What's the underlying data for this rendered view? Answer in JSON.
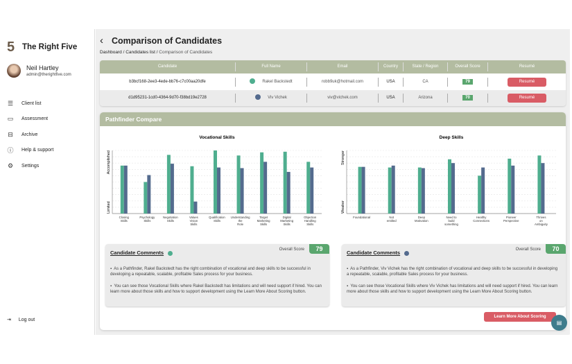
{
  "brand": {
    "name": "The Right Five",
    "logo_glyph": "5"
  },
  "user": {
    "name": "Neil Hartley",
    "email": "admin@therightfive.com"
  },
  "nav": [
    {
      "label": "Client list",
      "icon": "list-icon",
      "glyph": "☰"
    },
    {
      "label": "Assessment",
      "icon": "chat-bubble-icon",
      "glyph": "▭"
    },
    {
      "label": "Archive",
      "icon": "archive-icon",
      "glyph": "⊟"
    },
    {
      "label": "Help & support",
      "icon": "info-circle-icon",
      "glyph": "ⓘ"
    },
    {
      "label": "Settings",
      "icon": "gear-icon",
      "glyph": "⚙"
    }
  ],
  "logout": {
    "label": "Log out",
    "glyph": "⇥"
  },
  "header": {
    "title": "Comparison of Candidates",
    "back_glyph": "‹"
  },
  "breadcrumb": {
    "items": [
      "Dashboard",
      "Candidates list"
    ],
    "current": "Comparison of Candidates",
    "sep": " / "
  },
  "table": {
    "columns": [
      "Candidate",
      "Full Name",
      "Email",
      "Country",
      "State / Region",
      "Overall Score",
      "Resumé"
    ],
    "rows": [
      {
        "id": "b3bcf168-2ee3-4ede-bb76-c7c00aa20dfe",
        "name": "Rakel Backstedt",
        "email": "robb9uk@hotmail.com",
        "country": "USA",
        "state": "CA",
        "score": "79",
        "color": "#4fae8f",
        "resume": "Resumé"
      },
      {
        "id": "d1d95231-1cd0-4364-9d70-f38bd19e2728",
        "name": "Viv Vichek",
        "email": "viv@vichek.com",
        "country": "USA",
        "state": "Arizona",
        "score": "70",
        "color": "#546b8e",
        "resume": "Resumé"
      }
    ]
  },
  "pathfinder": {
    "title": "Pathfinder Compare",
    "learn_more": "Learn More About Scoring",
    "comments": [
      {
        "heading": "Candidate Comments",
        "score_label": "Overall Score",
        "score": "79",
        "color": "#4fae8f",
        "bullets": [
          "As a Pathfinder, Rakel Backstedt has the right combination of vocational and deep skills to be successful in developing a repeatable, scalable, profitable Sales process for your business.",
          "You can see those Vocational Skills where Rakel Backstedt has limitations and will need support if hired. You can learn more about those skills and how to support development using the Learn More About Scoring button."
        ]
      },
      {
        "heading": "Candidate Comments",
        "score_label": "Overall Score",
        "score": "70",
        "color": "#546b8e",
        "bullets": [
          "As a Pathfinder, Viv Vichek has the right combination of vocational and deep skills to be successful in developing a repeatable, scalable, profitable Sales process for your business.",
          "You can see those Vocational Skills where Viv Vichek has limitations and will need support if hired. You can learn more about those skills and how to support development using the Learn More About Scoring button."
        ]
      }
    ]
  },
  "chart_data": [
    {
      "type": "bar",
      "title": "Vocational Skills",
      "ylabel_top": "Accomplished",
      "ylabel_bottom": "Limited",
      "ylim": [
        0,
        100
      ],
      "grid": true,
      "categories": [
        "Closing Skills",
        "Psychology Skills",
        "Negotiation Skills",
        "Values Vision Skills",
        "Qualification Skills",
        "Understanding the Role",
        "Target Marketing Skills",
        "Digital Marketing Skills",
        "Objection Handling Skills"
      ],
      "series": [
        {
          "values": [
            76,
            50,
            93,
            75,
            100,
            92,
            97,
            98,
            82
          ],
          "color": "#4fae8f"
        },
        {
          "values": [
            76,
            61,
            79,
            19,
            73,
            72,
            82,
            66,
            73
          ],
          "color": "#546b8e"
        }
      ]
    },
    {
      "type": "bar",
      "title": "Deep Skills",
      "ylabel_top": "Stronger",
      "ylabel_bottom": "Weaker",
      "ylim": [
        0,
        100
      ],
      "grid": true,
      "categories": [
        "Foundational",
        "Not entitled",
        "Deep Motivation",
        "Need to build something",
        "Healthy Connections",
        "Pioneer Perspective",
        "Thrives on Ambiguity"
      ],
      "series": [
        {
          "values": [
            74,
            73,
            73,
            86,
            60,
            87,
            92
          ],
          "color": "#4fae8f"
        },
        {
          "values": [
            74,
            76,
            72,
            80,
            73,
            76,
            80
          ],
          "color": "#546b8e"
        }
      ]
    }
  ]
}
